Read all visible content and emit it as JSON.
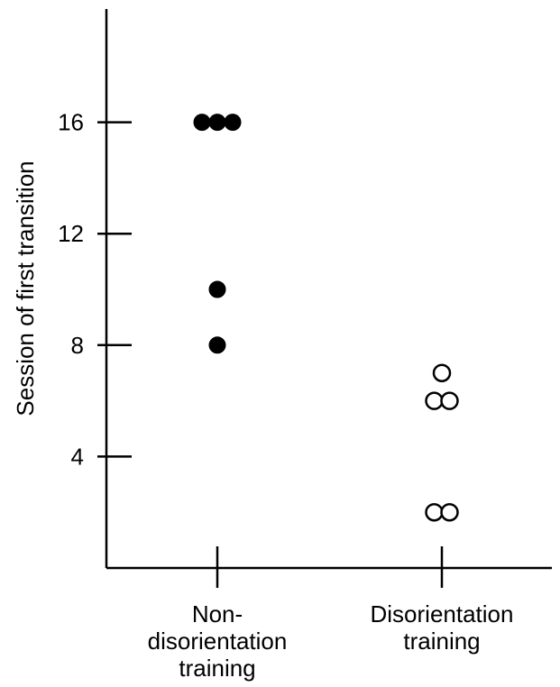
{
  "chart_data": {
    "type": "scatter",
    "ylabel": "Session of first transition",
    "xlabel": "",
    "ylim": [
      0,
      20
    ],
    "yticks": [
      4,
      8,
      12,
      16
    ],
    "grid": false,
    "categories": [
      {
        "label_lines": [
          "Non-",
          "disorientation",
          "training"
        ]
      },
      {
        "label_lines": [
          "Disorientation",
          "training"
        ]
      }
    ],
    "series": [
      {
        "marker": "filled-circle",
        "category_index": 0,
        "points": [
          {
            "y": 16,
            "offset": -1
          },
          {
            "y": 16,
            "offset": 0
          },
          {
            "y": 16,
            "offset": 1
          },
          {
            "y": 10,
            "offset": 0
          },
          {
            "y": 8,
            "offset": 0
          }
        ]
      },
      {
        "marker": "open-circle",
        "category_index": 1,
        "points": [
          {
            "y": 7,
            "offset": 0
          },
          {
            "y": 6,
            "offset": -0.5
          },
          {
            "y": 6,
            "offset": 0.5
          },
          {
            "y": 2,
            "offset": -0.5
          },
          {
            "y": 2,
            "offset": 0.5
          }
        ]
      }
    ]
  }
}
